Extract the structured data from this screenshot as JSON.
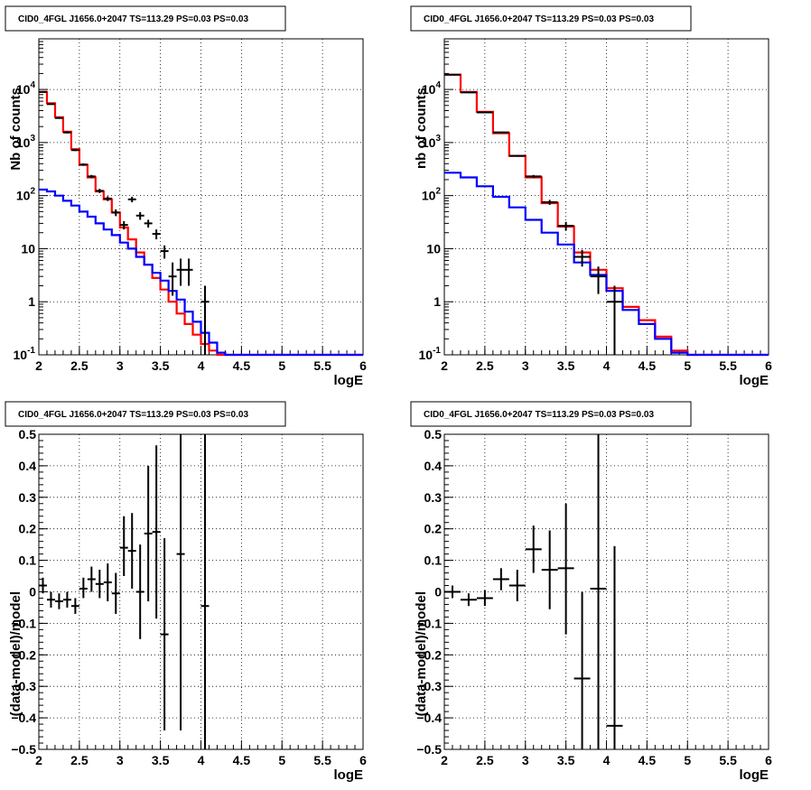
{
  "chart_data": [
    {
      "type": "line",
      "title": "CID0_4FGL J1656.0+2047 TS=113.29 PS=0.03 PS=0.03",
      "xlabel": "logE",
      "ylabel": "Nb of counts",
      "xlim": [
        2,
        6
      ],
      "ylim": [
        0.1,
        90000
      ],
      "log_y": true,
      "grid": true,
      "x_ticks": [
        "2",
        "2.5",
        "3",
        "3.5",
        "4",
        "4.5",
        "5",
        "5.5",
        "6"
      ],
      "y_ticks": [
        "10⁻¹",
        "1",
        "10",
        "10²",
        "10³",
        "10⁴"
      ],
      "bin_width": 0.1,
      "bin_start": [
        2.0,
        2.1,
        2.2,
        2.3,
        2.4,
        2.5,
        2.6,
        2.7,
        2.8,
        2.9,
        3.0,
        3.1,
        3.2,
        3.3,
        3.4,
        3.5,
        3.6,
        3.7,
        3.8,
        3.9,
        4.0,
        4.1,
        4.2,
        4.3,
        4.4,
        4.5,
        4.6,
        4.7,
        4.8,
        4.9,
        5.0,
        5.1,
        5.2,
        5.3,
        5.4,
        5.5,
        5.6,
        5.7,
        5.8,
        5.9
      ],
      "series": [
        {
          "color": "#ff0000",
          "values": [
            9000,
            5500,
            3000,
            1600,
            750,
            380,
            220,
            120,
            85,
            48,
            25,
            15,
            8.5,
            5,
            2.8,
            1.7,
            1.0,
            0.6,
            0.38,
            0.24,
            0.16,
            0.12,
            0.1,
            0.1,
            0.1,
            0.1,
            0.1,
            0.1,
            0.1,
            0.1,
            0.1,
            0.1,
            0.1,
            0.1,
            0.1,
            0.1,
            0.1,
            0.1,
            0.1,
            0.1
          ]
        },
        {
          "color": "#0000ff",
          "values": [
            130,
            120,
            100,
            80,
            65,
            50,
            40,
            30,
            23,
            18,
            13,
            10,
            7,
            5,
            3.5,
            2.5,
            1.6,
            1.1,
            0.65,
            0.42,
            0.26,
            0.17,
            0.11,
            0.1,
            0.1,
            0.1,
            0.1,
            0.1,
            0.1,
            0.1,
            0.1,
            0.1,
            0.1,
            0.1,
            0.1,
            0.1,
            0.1,
            0.1,
            0.1,
            0.1
          ]
        }
      ],
      "points": [
        {
          "x": 2.05,
          "y": 9000,
          "lo": 8800,
          "hi": 9200,
          "xerr": 0.05
        },
        {
          "x": 2.15,
          "y": 5300,
          "lo": 5150,
          "hi": 5450,
          "xerr": 0.05
        },
        {
          "x": 2.25,
          "y": 2900,
          "lo": 2800,
          "hi": 3000,
          "xerr": 0.05
        },
        {
          "x": 2.35,
          "y": 1550,
          "lo": 1480,
          "hi": 1620,
          "xerr": 0.05
        },
        {
          "x": 2.45,
          "y": 720,
          "lo": 690,
          "hi": 750,
          "xerr": 0.05
        },
        {
          "x": 2.55,
          "y": 385,
          "lo": 365,
          "hi": 405,
          "xerr": 0.05
        },
        {
          "x": 2.65,
          "y": 230,
          "lo": 215,
          "hi": 245,
          "xerr": 0.05
        },
        {
          "x": 2.75,
          "y": 123,
          "lo": 112,
          "hi": 134,
          "xerr": 0.05
        },
        {
          "x": 2.85,
          "y": 88,
          "lo": 79,
          "hi": 97,
          "xerr": 0.05
        },
        {
          "x": 2.95,
          "y": 48,
          "lo": 41,
          "hi": 55,
          "xerr": 0.05
        },
        {
          "x": 3.05,
          "y": 28,
          "lo": 23,
          "hi": 33,
          "xerr": 0.05
        },
        {
          "x": 3.15,
          "y": 85,
          "lo": 75,
          "hi": 95,
          "xerr": 0.05
        },
        {
          "x": 3.25,
          "y": 42,
          "lo": 35,
          "hi": 49,
          "xerr": 0.05
        },
        {
          "x": 3.35,
          "y": 30,
          "lo": 25,
          "hi": 35,
          "xerr": 0.05
        },
        {
          "x": 3.45,
          "y": 19,
          "lo": 15,
          "hi": 23,
          "xerr": 0.05
        },
        {
          "x": 3.55,
          "y": 9,
          "lo": 6.5,
          "hi": 11.5,
          "xerr": 0.05
        },
        {
          "x": 3.65,
          "y": 3,
          "lo": 1.3,
          "hi": 5.5,
          "xerr": 0.05
        },
        {
          "x": 3.75,
          "y": 4,
          "lo": 2.0,
          "hi": 6.5,
          "xerr": 0.05
        },
        {
          "x": 3.85,
          "y": 4,
          "lo": 2.0,
          "hi": 6.5,
          "xerr": 0.05
        },
        {
          "x": 4.05,
          "y": 1,
          "lo": 0.1,
          "hi": 2.0,
          "xerr": 0.05
        }
      ]
    },
    {
      "type": "line",
      "title": "CID0_4FGL J1656.0+2047 TS=113.29 PS=0.03 PS=0.03",
      "xlabel": "logE",
      "ylabel": "nb of counts",
      "xlim": [
        2,
        6
      ],
      "ylim": [
        0.1,
        90000
      ],
      "log_y": true,
      "grid": true,
      "x_ticks": [
        "2",
        "2.5",
        "3",
        "3.5",
        "4",
        "4.5",
        "5",
        "5.5",
        "6"
      ],
      "y_ticks": [
        "10⁻¹",
        "1",
        "10",
        "10²",
        "10³",
        "10⁴"
      ],
      "bin_width": 0.2,
      "bin_start": [
        2.0,
        2.2,
        2.4,
        2.6,
        2.8,
        3.0,
        3.2,
        3.4,
        3.6,
        3.8,
        4.0,
        4.2,
        4.4,
        4.6,
        4.8,
        5.0,
        5.2,
        5.4,
        5.6,
        5.8
      ],
      "series": [
        {
          "color": "#ff0000",
          "values": [
            19000,
            9000,
            3800,
            1500,
            560,
            220,
            72,
            26,
            8.5,
            4.0,
            1.8,
            0.8,
            0.45,
            0.22,
            0.12,
            0.1,
            0.1,
            0.1,
            0.1,
            0.1
          ]
        },
        {
          "color": "#0000ff",
          "values": [
            270,
            220,
            150,
            95,
            60,
            35,
            20,
            12,
            5.5,
            3.2,
            1.6,
            0.7,
            0.38,
            0.2,
            0.11,
            0.1,
            0.1,
            0.1,
            0.1,
            0.1
          ]
        }
      ],
      "points": [
        {
          "x": 2.1,
          "y": 19000,
          "lo": 18600,
          "hi": 19400,
          "xerr": 0.1
        },
        {
          "x": 2.3,
          "y": 8800,
          "lo": 8600,
          "hi": 9000,
          "xerr": 0.1
        },
        {
          "x": 2.5,
          "y": 3700,
          "lo": 3600,
          "hi": 3800,
          "xerr": 0.1
        },
        {
          "x": 2.7,
          "y": 1550,
          "lo": 1500,
          "hi": 1600,
          "xerr": 0.1
        },
        {
          "x": 2.9,
          "y": 560,
          "lo": 540,
          "hi": 580,
          "xerr": 0.1
        },
        {
          "x": 3.1,
          "y": 230,
          "lo": 215,
          "hi": 245,
          "xerr": 0.1
        },
        {
          "x": 3.3,
          "y": 75,
          "lo": 67,
          "hi": 83,
          "xerr": 0.1
        },
        {
          "x": 3.5,
          "y": 27,
          "lo": 22,
          "hi": 32,
          "xerr": 0.1
        },
        {
          "x": 3.7,
          "y": 7,
          "lo": 4.6,
          "hi": 9.5,
          "xerr": 0.1
        },
        {
          "x": 3.9,
          "y": 3,
          "lo": 1.4,
          "hi": 4.6,
          "xerr": 0.1
        },
        {
          "x": 4.1,
          "y": 1,
          "lo": 0.1,
          "hi": 2.0,
          "xerr": 0.1
        }
      ]
    },
    {
      "type": "scatter",
      "title": "CID0_4FGL J1656.0+2047 TS=113.29 PS=0.03 PS=0.03",
      "xlabel": "logE",
      "ylabel": "(data-model)/model",
      "xlim": [
        2,
        6
      ],
      "ylim": [
        -0.5,
        0.5
      ],
      "grid": true,
      "x_ticks": [
        "2",
        "2.5",
        "3",
        "3.5",
        "4",
        "4.5",
        "5",
        "5.5",
        "6"
      ],
      "y_ticks": [
        "−0.5",
        "−0.4",
        "−0.3",
        "−0.2",
        "−0.1",
        "0",
        "0.1",
        "0.2",
        "0.3",
        "0.4",
        "0.5"
      ],
      "points": [
        {
          "x": 2.05,
          "y": 0.02,
          "lo": -0.005,
          "hi": 0.045,
          "xerr": 0.05
        },
        {
          "x": 2.15,
          "y": -0.025,
          "lo": -0.05,
          "hi": 0.0,
          "xerr": 0.05
        },
        {
          "x": 2.25,
          "y": -0.03,
          "lo": -0.055,
          "hi": -0.005,
          "xerr": 0.05
        },
        {
          "x": 2.35,
          "y": -0.025,
          "lo": -0.05,
          "hi": 0.0,
          "xerr": 0.05
        },
        {
          "x": 2.45,
          "y": -0.045,
          "lo": -0.07,
          "hi": -0.02,
          "xerr": 0.05
        },
        {
          "x": 2.55,
          "y": 0.01,
          "lo": -0.02,
          "hi": 0.045,
          "xerr": 0.05
        },
        {
          "x": 2.65,
          "y": 0.04,
          "lo": 0.0,
          "hi": 0.08,
          "xerr": 0.05
        },
        {
          "x": 2.75,
          "y": 0.025,
          "lo": -0.02,
          "hi": 0.07,
          "xerr": 0.05
        },
        {
          "x": 2.85,
          "y": 0.03,
          "lo": -0.03,
          "hi": 0.09,
          "xerr": 0.05
        },
        {
          "x": 2.95,
          "y": -0.005,
          "lo": -0.07,
          "hi": 0.06,
          "xerr": 0.05
        },
        {
          "x": 3.05,
          "y": 0.14,
          "lo": 0.05,
          "hi": 0.24,
          "xerr": 0.05
        },
        {
          "x": 3.15,
          "y": 0.13,
          "lo": 0.01,
          "hi": 0.25,
          "xerr": 0.05
        },
        {
          "x": 3.25,
          "y": 0.0,
          "lo": -0.15,
          "hi": 0.15,
          "xerr": 0.05
        },
        {
          "x": 3.35,
          "y": 0.185,
          "lo": -0.03,
          "hi": 0.4,
          "xerr": 0.05
        },
        {
          "x": 3.45,
          "y": 0.19,
          "lo": -0.085,
          "hi": 0.465,
          "xerr": 0.05
        },
        {
          "x": 3.55,
          "y": -0.135,
          "lo": -0.44,
          "hi": 0.17,
          "xerr": 0.05
        },
        {
          "x": 3.75,
          "y": 0.12,
          "lo": -0.44,
          "hi": 0.5,
          "xerr": 0.05
        },
        {
          "x": 4.05,
          "y": -0.045,
          "lo": -0.5,
          "hi": 0.5,
          "xerr": 0.05
        }
      ]
    },
    {
      "type": "scatter",
      "title": "CID0_4FGL J1656.0+2047 TS=113.29 PS=0.03 PS=0.03",
      "xlabel": "logE",
      "ylabel": "(data-model)/model",
      "xlim": [
        2,
        6
      ],
      "ylim": [
        -0.5,
        0.5
      ],
      "grid": true,
      "x_ticks": [
        "2",
        "2.5",
        "3",
        "3.5",
        "4",
        "4.5",
        "5",
        "5.5",
        "6"
      ],
      "y_ticks": [
        "−0.5",
        "−0.4",
        "−0.3",
        "−0.2",
        "−0.1",
        "0",
        "0.1",
        "0.2",
        "0.3",
        "0.4",
        "0.5"
      ],
      "points": [
        {
          "x": 2.1,
          "y": 0.0,
          "lo": -0.02,
          "hi": 0.02,
          "xerr": 0.1
        },
        {
          "x": 2.3,
          "y": -0.025,
          "lo": -0.045,
          "hi": -0.005,
          "xerr": 0.1
        },
        {
          "x": 2.5,
          "y": -0.02,
          "lo": -0.045,
          "hi": 0.005,
          "xerr": 0.1
        },
        {
          "x": 2.7,
          "y": 0.04,
          "lo": 0.005,
          "hi": 0.075,
          "xerr": 0.1
        },
        {
          "x": 2.9,
          "y": 0.02,
          "lo": -0.03,
          "hi": 0.07,
          "xerr": 0.1
        },
        {
          "x": 3.1,
          "y": 0.135,
          "lo": 0.06,
          "hi": 0.21,
          "xerr": 0.1
        },
        {
          "x": 3.3,
          "y": 0.07,
          "lo": -0.055,
          "hi": 0.195,
          "xerr": 0.1
        },
        {
          "x": 3.5,
          "y": 0.075,
          "lo": -0.135,
          "hi": 0.28,
          "xerr": 0.1
        },
        {
          "x": 3.7,
          "y": -0.275,
          "lo": -0.5,
          "hi": 0.0,
          "xerr": 0.1
        },
        {
          "x": 3.9,
          "y": 0.01,
          "lo": -0.5,
          "hi": 0.5,
          "xerr": 0.1
        },
        {
          "x": 4.1,
          "y": -0.425,
          "lo": -0.5,
          "hi": 0.145,
          "xerr": 0.1
        }
      ]
    }
  ]
}
